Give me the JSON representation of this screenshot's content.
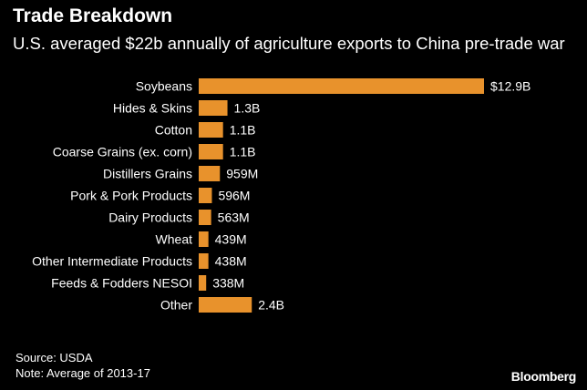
{
  "title": "Trade Breakdown",
  "subtitle": "U.S. averaged $22b annually of agriculture exports to China pre-trade war",
  "footer": {
    "source": "Source: USDA",
    "note": "Note: Average of 2013-17",
    "brand": "Bloomberg"
  },
  "colors": {
    "background": "#000000",
    "bar": "#E8922C",
    "text": "#FFFFFF"
  },
  "chart_data": {
    "type": "bar",
    "orientation": "horizontal",
    "title": "Trade Breakdown",
    "subtitle": "U.S. averaged $22b annually of agriculture exports to China pre-trade war",
    "xlabel": "",
    "ylabel": "",
    "unit": "USD",
    "grid": false,
    "legend": "none",
    "xlim": [
      0,
      12.9
    ],
    "categories": [
      "Soybeans",
      "Hides & Skins",
      "Cotton",
      "Coarse Grains (ex. corn)",
      "Distillers Grains",
      "Pork & Pork Products",
      "Dairy Products",
      "Wheat",
      "Other Intermediate Products",
      "Feeds & Fodders NESOI",
      "Other"
    ],
    "values": [
      12.9,
      1.3,
      1.1,
      1.1,
      0.959,
      0.596,
      0.563,
      0.439,
      0.438,
      0.338,
      2.4
    ],
    "value_labels": [
      "$12.9B",
      "1.3B",
      "1.1B",
      "1.1B",
      "959M",
      "596M",
      "563M",
      "439M",
      "438M",
      "338M",
      "2.4B"
    ]
  }
}
